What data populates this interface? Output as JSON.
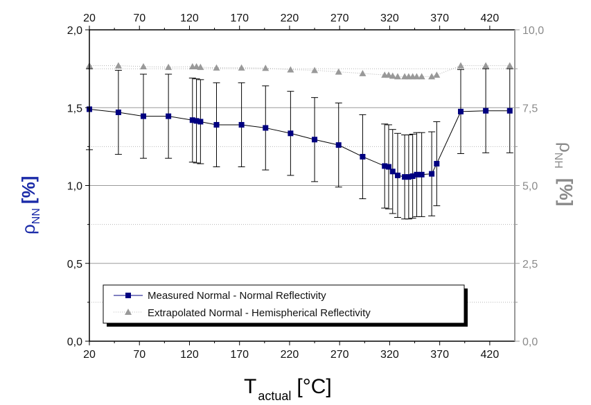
{
  "colors": {
    "measured": "#000080",
    "extrapolated": "#999999",
    "right_axis": "#999999",
    "ylabel_left": "#1a2aa8"
  },
  "chart_data": {
    "type": "line",
    "x_ticks": [
      "20",
      "70",
      "120",
      "170",
      "220",
      "270",
      "320",
      "370",
      "420"
    ],
    "top_x_ticks": [
      "20",
      "70",
      "120",
      "170",
      "220",
      "270",
      "320",
      "370",
      "420"
    ],
    "y_left_ticks": [
      "0,0",
      "0,5",
      "1,0",
      "1,5",
      "2,0"
    ],
    "y_right_ticks": [
      "0,0",
      "2,5",
      "5,0",
      "7,5",
      "10,0"
    ],
    "xlim": [
      20,
      445
    ],
    "ylim_left": [
      0,
      2
    ],
    "ylim_right": [
      0,
      10
    ],
    "xlabel_main": "T",
    "xlabel_sub": "actual",
    "xlabel_unit": "[°C]",
    "ylabel_left_symbol": "ρ",
    "ylabel_left_sub": "NN",
    "ylabel_left_unit": "[%]",
    "ylabel_right_symbol": "ρ",
    "ylabel_right_sub": "NH",
    "ylabel_right_unit": "[%]",
    "grid": true,
    "legend_position": "bottom-left",
    "series": [
      {
        "name": "Measured Normal - Normal Reflectivity",
        "axis": "left",
        "marker": "square",
        "x": [
          20,
          49,
          74,
          99,
          123,
          127,
          131,
          147,
          172,
          196,
          221,
          245,
          269,
          293,
          315,
          319,
          323,
          328,
          335,
          339,
          343,
          347,
          352,
          362,
          367,
          391,
          416,
          440
        ],
        "y": [
          1.49,
          1.47,
          1.445,
          1.445,
          1.42,
          1.415,
          1.41,
          1.39,
          1.39,
          1.37,
          1.335,
          1.295,
          1.26,
          1.185,
          1.125,
          1.12,
          1.09,
          1.065,
          1.055,
          1.055,
          1.06,
          1.07,
          1.07,
          1.075,
          1.14,
          1.475,
          1.48,
          1.48
        ],
        "err": [
          0.26,
          0.27,
          0.27,
          0.27,
          0.27,
          0.27,
          0.27,
          0.27,
          0.27,
          0.27,
          0.27,
          0.27,
          0.27,
          0.27,
          0.27,
          0.27,
          0.27,
          0.27,
          0.27,
          0.27,
          0.27,
          0.27,
          0.27,
          0.27,
          0.27,
          0.27,
          0.27,
          0.27
        ]
      },
      {
        "name": "Extrapolated Normal - Hemispherical Reflectivity",
        "axis": "right",
        "marker": "triangle",
        "x": [
          20,
          49,
          74,
          99,
          123,
          127,
          131,
          147,
          172,
          196,
          221,
          245,
          269,
          293,
          315,
          319,
          323,
          328,
          335,
          339,
          343,
          347,
          352,
          362,
          367,
          391,
          416,
          440
        ],
        "y": [
          8.85,
          8.85,
          8.82,
          8.8,
          8.82,
          8.82,
          8.8,
          8.78,
          8.78,
          8.77,
          8.72,
          8.7,
          8.65,
          8.6,
          8.55,
          8.55,
          8.52,
          8.5,
          8.5,
          8.5,
          8.5,
          8.5,
          8.5,
          8.5,
          8.55,
          8.85,
          8.85,
          8.85
        ]
      }
    ]
  }
}
